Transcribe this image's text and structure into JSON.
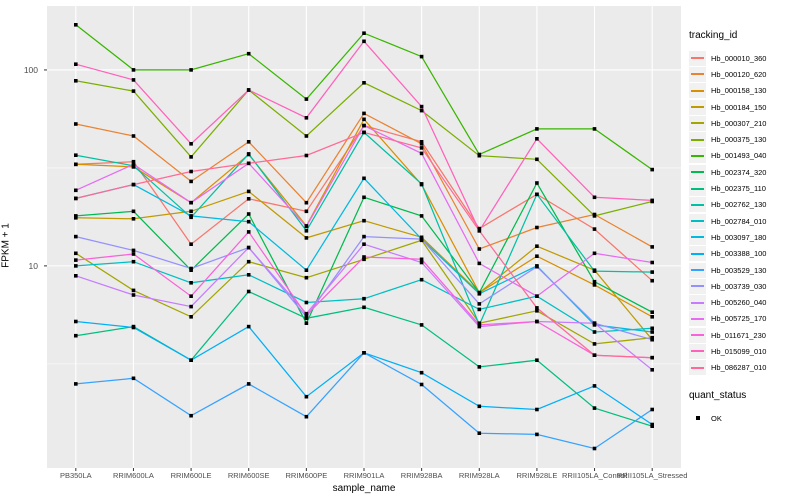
{
  "axes": {
    "x_title": "sample_name",
    "y_title": "FPKM + 1"
  },
  "legend": {
    "tracking_title": "tracking_id",
    "quant_title": "quant_status",
    "quant_items": [
      "OK"
    ]
  },
  "chart_data": {
    "type": "line",
    "title": "",
    "xlabel": "sample_name",
    "ylabel": "FPKM + 1",
    "y_scale": "log10",
    "ylim": [
      0.93,
      212
    ],
    "y_major_ticks": [
      100,
      10
    ],
    "y_major_tick_labels": [
      "100",
      "10"
    ],
    "y_minor_ticks": [
      31.62,
      3.162
    ],
    "grid": "on",
    "legend_position": "right",
    "point_marker": "black-square",
    "categories": [
      "PB350LA",
      "RRIM600LA",
      "RRIM600LE",
      "RRIM600SE",
      "RRIM600PE",
      "RRIM901LA",
      "RRIM928BA",
      "RRIM928LA",
      "RRIM928LE",
      "RRII105LA_Control",
      "RRII105LA_Stressed"
    ],
    "series": [
      {
        "name": "Hb_000010_360",
        "color": "#F8766D",
        "values": [
          33,
          34,
          12.9,
          22,
          19,
          52,
          43,
          15.5,
          23.2,
          15.4,
          8.4
        ]
      },
      {
        "name": "Hb_000120_620",
        "color": "#EA8331",
        "values": [
          53,
          46,
          27,
          43,
          21,
          60,
          42,
          12.2,
          15.7,
          18.3,
          12.5
        ]
      },
      {
        "name": "Hb_000158_130",
        "color": "#D89000",
        "values": [
          33,
          32,
          21,
          37,
          16,
          56,
          26,
          7.3,
          11.2,
          8.0,
          5.5
        ]
      },
      {
        "name": "Hb_000184_150",
        "color": "#C09B00",
        "values": [
          17.6,
          17.4,
          19,
          24,
          13.9,
          17,
          14,
          7.3,
          12.6,
          9.5,
          4.2
        ]
      },
      {
        "name": "Hb_000307_210",
        "color": "#A3A500",
        "values": [
          11.6,
          7.5,
          5.5,
          10.5,
          8.7,
          10.8,
          13.5,
          5.1,
          5.9,
          4.0,
          4.3
        ]
      },
      {
        "name": "Hb_000375_130",
        "color": "#7CAE00",
        "values": [
          88,
          78,
          36,
          79,
          46,
          86,
          62,
          36.5,
          35,
          18,
          21.3
        ]
      },
      {
        "name": "Hb_001493_040",
        "color": "#39B600",
        "values": [
          170,
          100,
          100,
          121,
          71,
          154,
          117,
          37,
          50,
          50,
          31
        ]
      },
      {
        "name": "Hb_002374_320",
        "color": "#00BB4E",
        "values": [
          18,
          19,
          9.5,
          18.4,
          5.1,
          22.4,
          18,
          7.3,
          26.5,
          8.3,
          5.8
        ]
      },
      {
        "name": "Hb_002375_110",
        "color": "#00BF7D",
        "values": [
          4.4,
          4.9,
          3.3,
          7.4,
          5.4,
          6.15,
          5.0,
          3.05,
          3.3,
          1.88,
          1.52
        ]
      },
      {
        "name": "Hb_002762_130",
        "color": "#00C1A3",
        "values": [
          36.7,
          32.4,
          17.7,
          37.3,
          15.1,
          48,
          26.2,
          5.0,
          23.2,
          9.4,
          9.3
        ]
      },
      {
        "name": "Hb_002784_010",
        "color": "#00BFC4",
        "values": [
          10,
          10.5,
          8.2,
          9,
          6.5,
          6.8,
          8.5,
          6.0,
          7.0,
          4.6,
          4.8
        ]
      },
      {
        "name": "Hb_003097_180",
        "color": "#00BAE0",
        "values": [
          22.1,
          26,
          18,
          16.8,
          9.5,
          28,
          13.7,
          7.2,
          10,
          5.0,
          4.6
        ]
      },
      {
        "name": "Hb_003388_100",
        "color": "#00B0F6",
        "values": [
          5.2,
          4.85,
          3.3,
          4.9,
          2.15,
          3.6,
          2.85,
          1.92,
          1.85,
          2.44,
          1.55
        ]
      },
      {
        "name": "Hb_003529_130",
        "color": "#35A2FF",
        "values": [
          2.5,
          2.67,
          1.72,
          2.5,
          1.7,
          3.6,
          2.48,
          1.4,
          1.38,
          1.17,
          1.85
        ]
      },
      {
        "name": "Hb_003739_030",
        "color": "#9590FF",
        "values": [
          14.1,
          12,
          9.7,
          12.4,
          5.5,
          14.1,
          13.7,
          6.4,
          9.9,
          5.1,
          4.2
        ]
      },
      {
        "name": "Hb_005260_040",
        "color": "#C77CFF",
        "values": [
          8.9,
          7.1,
          6.2,
          12.4,
          5.7,
          12.9,
          10.4,
          4.9,
          5.2,
          5.1,
          2.95
        ]
      },
      {
        "name": "Hb_005725_170",
        "color": "#E76BF3",
        "values": [
          24.3,
          33,
          21,
          33.4,
          15.9,
          52,
          37.5,
          10.3,
          7.0,
          11.6,
          10.4
        ]
      },
      {
        "name": "Hb_011671_230",
        "color": "#FA62DB",
        "values": [
          10.7,
          11.5,
          7.0,
          14.9,
          5.6,
          11.1,
          10.8,
          5.0,
          5.2,
          3.5,
          3.4
        ]
      },
      {
        "name": "Hb_015099_010",
        "color": "#FF62BC",
        "values": [
          107,
          89,
          42,
          79,
          57,
          140,
          65,
          15.1,
          44.5,
          22.4,
          21.6
        ]
      },
      {
        "name": "Hb_086287_010",
        "color": "#FF6A98",
        "values": [
          22.1,
          26,
          30.3,
          33.4,
          36.6,
          48,
          40,
          15.1,
          6.1,
          3.5,
          3.4
        ]
      }
    ],
    "panel_colors": {
      "background": "#EBEBEB",
      "grid": "#FFFFFF",
      "tick_text": "#4D4D4D",
      "point": "#000000"
    }
  }
}
